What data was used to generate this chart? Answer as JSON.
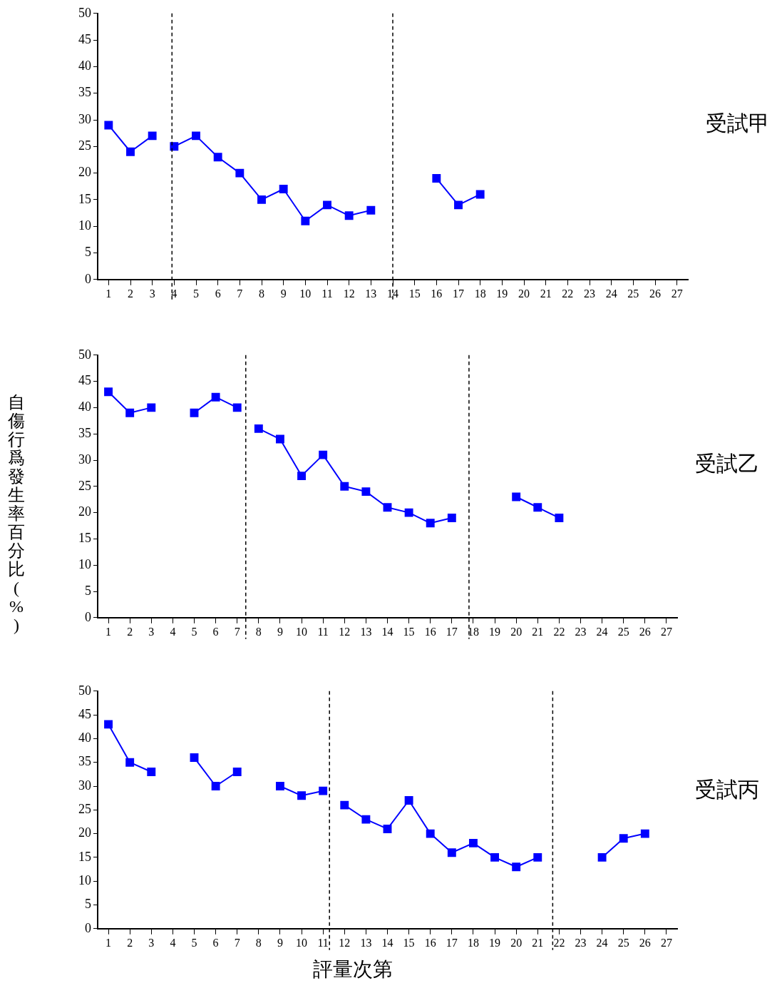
{
  "chart_data": [
    {
      "type": "line",
      "marker": "square",
      "grid": false,
      "legend": false,
      "xlim": [
        0.5,
        27.5
      ],
      "xticks": [
        1,
        2,
        3,
        4,
        5,
        6,
        7,
        8,
        9,
        10,
        11,
        12,
        13,
        14,
        15,
        16,
        17,
        18,
        19,
        20,
        21,
        22,
        23,
        24,
        25,
        26,
        27
      ],
      "ylim": [
        0,
        50
      ],
      "yticks": [
        0,
        5,
        10,
        15,
        20,
        25,
        30,
        35,
        40,
        45,
        50
      ],
      "annotations": [
        "受試甲"
      ],
      "ref_lines": [
        {
          "axis": "x",
          "value": 3.9,
          "line_style": "dashed",
          "color": "#000000"
        },
        {
          "axis": "x",
          "value": 14,
          "line_style": "dashed",
          "color": "#000000"
        }
      ],
      "series": [
        {
          "color": "#0000ff",
          "x": [
            1,
            2,
            3
          ],
          "values": [
            29,
            24,
            27
          ]
        },
        {
          "color": "#0000ff",
          "x": [
            4,
            5,
            6,
            7,
            8,
            9,
            10,
            11,
            12,
            13
          ],
          "values": [
            25,
            27,
            23,
            20,
            15,
            17,
            11,
            14,
            12,
            13
          ]
        },
        {
          "color": "#0000ff",
          "x": [
            16,
            17,
            18
          ],
          "values": [
            19,
            14,
            16
          ]
        }
      ]
    },
    {
      "type": "line",
      "marker": "square",
      "grid": false,
      "legend": false,
      "ylabel": "自傷行爲發生率百分比(%)",
      "xlim": [
        0.5,
        27.5
      ],
      "xticks": [
        1,
        2,
        3,
        4,
        5,
        6,
        7,
        8,
        9,
        10,
        11,
        12,
        13,
        14,
        15,
        16,
        17,
        18,
        19,
        20,
        21,
        22,
        23,
        24,
        25,
        26,
        27
      ],
      "ylim": [
        0,
        50
      ],
      "yticks": [
        0,
        5,
        10,
        15,
        20,
        25,
        30,
        35,
        40,
        45,
        50
      ],
      "annotations": [
        "受試乙"
      ],
      "ref_lines": [
        {
          "axis": "x",
          "value": 7.4,
          "line_style": "dashed",
          "color": "#000000"
        },
        {
          "axis": "x",
          "value": 17.8,
          "line_style": "dashed",
          "color": "#000000"
        }
      ],
      "series": [
        {
          "color": "#0000ff",
          "x": [
            1,
            2,
            3,
            4,
            5,
            6,
            7
          ],
          "values": [
            43,
            39,
            40,
            null,
            39,
            42,
            40
          ]
        },
        {
          "color": "#0000ff",
          "x": [
            8,
            9,
            10,
            11,
            12,
            13,
            14,
            15,
            16,
            17
          ],
          "values": [
            36,
            34,
            27,
            31,
            25,
            24,
            21,
            20,
            18,
            19
          ]
        },
        {
          "color": "#0000ff",
          "x": [
            20,
            21,
            22
          ],
          "values": [
            23,
            21,
            19
          ]
        }
      ]
    },
    {
      "type": "line",
      "marker": "square",
      "grid": false,
      "legend": false,
      "xlabel": "評量次第",
      "xlim": [
        0.5,
        27.5
      ],
      "xticks": [
        1,
        2,
        3,
        4,
        5,
        6,
        7,
        8,
        9,
        10,
        11,
        12,
        13,
        14,
        15,
        16,
        17,
        18,
        19,
        20,
        21,
        22,
        23,
        24,
        25,
        26,
        27
      ],
      "ylim": [
        0,
        50
      ],
      "yticks": [
        0,
        5,
        10,
        15,
        20,
        25,
        30,
        35,
        40,
        45,
        50
      ],
      "annotations": [
        "受試丙"
      ],
      "ref_lines": [
        {
          "axis": "x",
          "value": 11.3,
          "line_style": "dashed",
          "color": "#000000"
        },
        {
          "axis": "x",
          "value": 21.7,
          "line_style": "dashed",
          "color": "#000000"
        }
      ],
      "series": [
        {
          "color": "#0000ff",
          "x": [
            1,
            2,
            3,
            4,
            5,
            6,
            7,
            8,
            9,
            10,
            11
          ],
          "values": [
            43,
            35,
            33,
            null,
            36,
            30,
            33,
            null,
            30,
            28,
            29
          ]
        },
        {
          "color": "#0000ff",
          "x": [
            12,
            13,
            14,
            15,
            16,
            17,
            18,
            19,
            20,
            21
          ],
          "values": [
            26,
            23,
            21,
            27,
            20,
            16,
            18,
            15,
            13,
            15
          ]
        },
        {
          "color": "#0000ff",
          "x": [
            24,
            25,
            26
          ],
          "values": [
            15,
            19,
            20
          ]
        }
      ]
    }
  ]
}
